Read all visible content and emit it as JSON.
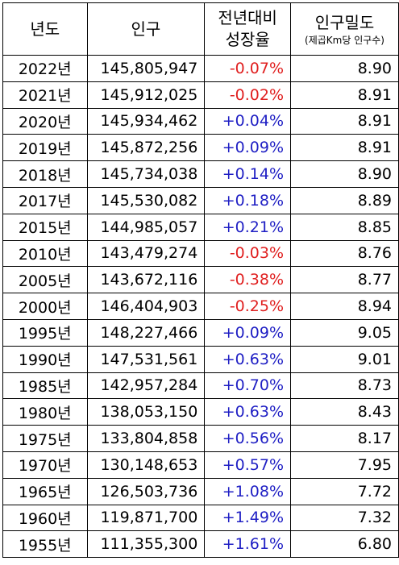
{
  "headers": {
    "year": "년도",
    "population": "인구",
    "growth_line1": "전년대비",
    "growth_line2": "성장율",
    "density_line1": "인구밀도",
    "density_line2": "(제곱Km당 인구수)"
  },
  "colors": {
    "negative": "#e02020",
    "positive": "#1f1fc4",
    "border": "#000000"
  },
  "rows": [
    {
      "year": "2022년",
      "population": "145,805,947",
      "growth": "-0.07%",
      "density": "8.90"
    },
    {
      "year": "2021년",
      "population": "145,912,025",
      "growth": "-0.02%",
      "density": "8.91"
    },
    {
      "year": "2020년",
      "population": "145,934,462",
      "growth": "+0.04%",
      "density": "8.91"
    },
    {
      "year": "2019년",
      "population": "145,872,256",
      "growth": "+0.09%",
      "density": "8.91"
    },
    {
      "year": "2018년",
      "population": "145,734,038",
      "growth": "+0.14%",
      "density": "8.90"
    },
    {
      "year": "2017년",
      "population": "145,530,082",
      "growth": "+0.18%",
      "density": "8.89"
    },
    {
      "year": "2015년",
      "population": "144,985,057",
      "growth": "+0.21%",
      "density": "8.85"
    },
    {
      "year": "2010년",
      "population": "143,479,274",
      "growth": "-0.03%",
      "density": "8.76"
    },
    {
      "year": "2005년",
      "population": "143,672,116",
      "growth": "-0.38%",
      "density": "8.77"
    },
    {
      "year": "2000년",
      "population": "146,404,903",
      "growth": "-0.25%",
      "density": "8.94"
    },
    {
      "year": "1995년",
      "population": "148,227,466",
      "growth": "+0.09%",
      "density": "9.05"
    },
    {
      "year": "1990년",
      "population": "147,531,561",
      "growth": "+0.63%",
      "density": "9.01"
    },
    {
      "year": "1985년",
      "population": "142,957,284",
      "growth": "+0.70%",
      "density": "8.73"
    },
    {
      "year": "1980년",
      "population": "138,053,150",
      "growth": "+0.63%",
      "density": "8.43"
    },
    {
      "year": "1975년",
      "population": "133,804,858",
      "growth": "+0.56%",
      "density": "8.17"
    },
    {
      "year": "1970년",
      "population": "130,148,653",
      "growth": "+0.57%",
      "density": "7.95"
    },
    {
      "year": "1965년",
      "population": "126,503,736",
      "growth": "+1.08%",
      "density": "7.72"
    },
    {
      "year": "1960년",
      "population": "119,871,700",
      "growth": "+1.49%",
      "density": "7.32"
    },
    {
      "year": "1955년",
      "population": "111,355,300",
      "growth": "+1.61%",
      "density": "6.80"
    }
  ]
}
